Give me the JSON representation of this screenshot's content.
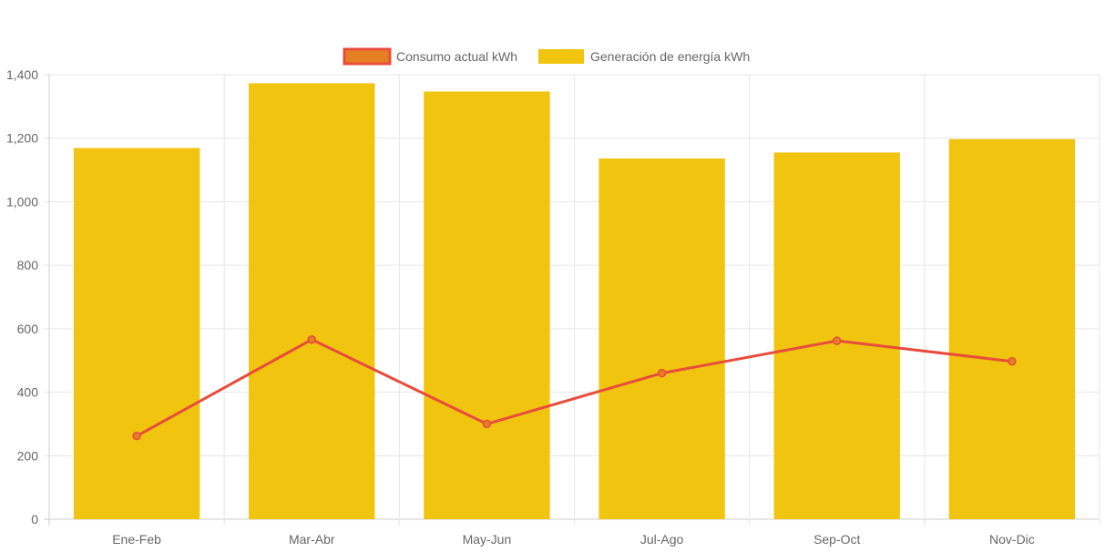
{
  "chart_data": {
    "type": "bar",
    "categories": [
      "Ene-Feb",
      "Mar-Abr",
      "May-Jun",
      "Jul-Ago",
      "Sep-Oct",
      "Nov-Dic"
    ],
    "series": [
      {
        "name": "Consumo actual kWh",
        "type": "line",
        "values": [
          262,
          566,
          300,
          460,
          562,
          497
        ],
        "color": "#e74c3c",
        "fill_color": "#e67e22"
      },
      {
        "name": "Generación de energía kWh",
        "type": "bar",
        "values": [
          1169,
          1373,
          1347,
          1136,
          1155,
          1197
        ],
        "color": "#f1c40f"
      }
    ],
    "ylim": [
      0,
      1400
    ],
    "yticks": [
      0,
      200,
      400,
      600,
      800,
      1000,
      1200,
      1400
    ],
    "ytick_labels": [
      "0",
      "200",
      "400",
      "600",
      "800",
      "1,000",
      "1,200",
      "1,400"
    ],
    "title": "",
    "xlabel": "",
    "ylabel": "",
    "grid": true,
    "legend_position": "top-center"
  }
}
